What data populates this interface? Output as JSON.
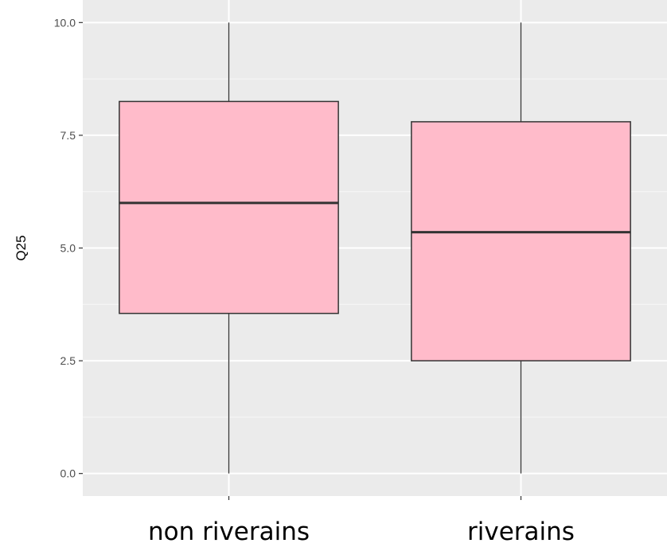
{
  "chart_data": {
    "type": "boxplot",
    "title": "",
    "xlabel": "",
    "ylabel": "Q25",
    "ylim": [
      -0.5,
      10.5
    ],
    "yticks": [
      0.0,
      2.5,
      5.0,
      7.5,
      10.0
    ],
    "ytick_labels": [
      "0.0",
      "2.5",
      "5.0",
      "7.5",
      "10.0"
    ],
    "grid": true,
    "legend": "none",
    "categories": [
      "non riverains",
      "riverains"
    ],
    "boxes": [
      {
        "category": "non riverains",
        "min": 0.0,
        "q1": 3.55,
        "median": 6.0,
        "q3": 8.25,
        "max": 10.0
      },
      {
        "category": "riverains",
        "min": 0.0,
        "q1": 2.5,
        "median": 5.35,
        "q3": 7.8,
        "max": 10.0
      }
    ],
    "colors": {
      "box_fill": "#ffbbca",
      "box_stroke": "#333333",
      "panel_bg": "#ebebeb",
      "grid_major": "#ffffff",
      "grid_minor": "#f5f5f5"
    }
  }
}
